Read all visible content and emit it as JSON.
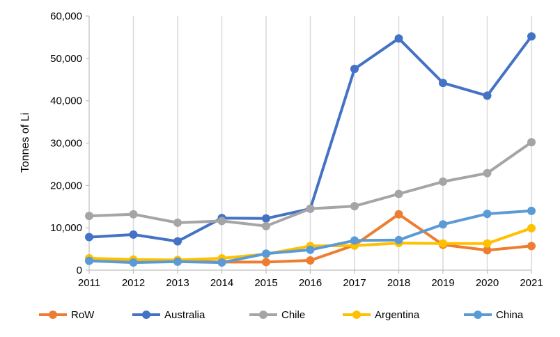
{
  "chart_data": {
    "type": "line",
    "title": "",
    "xlabel": "",
    "ylabel": "Tonnes of Li",
    "x": [
      "2011",
      "2012",
      "2013",
      "2014",
      "2015",
      "2016",
      "2017",
      "2018",
      "2019",
      "2020",
      "2021"
    ],
    "ylim": [
      0,
      60000
    ],
    "y_ticks": [
      "0",
      "10,000",
      "20,000",
      "30,000",
      "40,000",
      "50,000",
      "60,000"
    ],
    "grid": "vertical",
    "legend_position": "bottom",
    "series": [
      {
        "name": "RoW",
        "color": "#ED7D31",
        "values": [
          2800,
          2300,
          2200,
          1900,
          1900,
          2300,
          5900,
          13200,
          6000,
          4700,
          5700
        ]
      },
      {
        "name": "Australia",
        "color": "#4472C4",
        "values": [
          7800,
          8400,
          6800,
          12300,
          12200,
          14500,
          47500,
          54700,
          44200,
          41200,
          55200
        ]
      },
      {
        "name": "Chile",
        "color": "#A5A5A5",
        "values": [
          12800,
          13200,
          11200,
          11600,
          10400,
          14500,
          15100,
          18000,
          20900,
          22900,
          30200
        ]
      },
      {
        "name": "Argentina",
        "color": "#FFC000",
        "values": [
          2800,
          2500,
          2400,
          2800,
          3800,
          5700,
          5800,
          6400,
          6300,
          6300,
          9900
        ]
      },
      {
        "name": "China",
        "color": "#5B9BD5",
        "values": [
          2200,
          1800,
          2000,
          1800,
          3900,
          4800,
          7000,
          7100,
          10800,
          13300,
          14000
        ]
      }
    ]
  }
}
